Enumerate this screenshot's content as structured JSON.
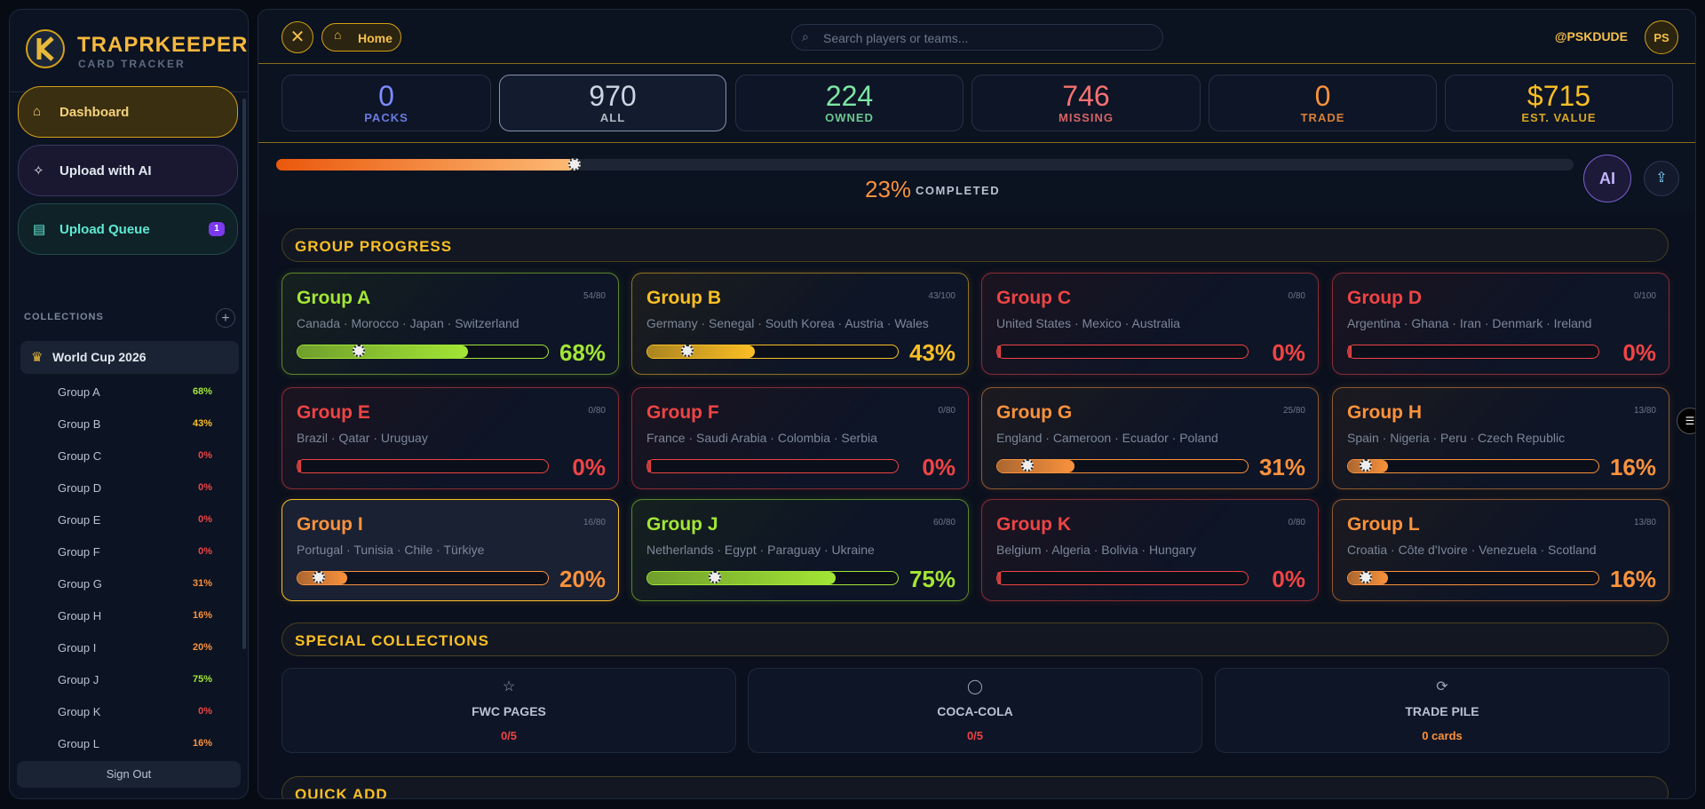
{
  "sidebar": {
    "brand": "TRAPRKEEPER",
    "tagline": "CARD TRACKER",
    "nav": [
      {
        "label": "Dashboard"
      },
      {
        "label": "Upload with AI"
      },
      {
        "label": "Upload Queue",
        "badge": "1"
      }
    ],
    "collections_heading": "COLLECTIONS",
    "collection": "World Cup 2026",
    "sign_out": "Sign Out"
  },
  "header": {
    "home": "Home",
    "search_placeholder": "Search players or teams...",
    "user": "@PSKDUDE",
    "avatar": "PS"
  },
  "stats": [
    {
      "value": "0",
      "label": "PACKS"
    },
    {
      "value": "970",
      "label": "ALL"
    },
    {
      "value": "224",
      "label": "OWNED"
    },
    {
      "value": "746",
      "label": "MISSING"
    },
    {
      "value": "0",
      "label": "TRADE"
    },
    {
      "value": "$715",
      "label": "EST. VALUE"
    }
  ],
  "progress": {
    "percent": "23%",
    "label": "COMPLETED",
    "ai": "AI"
  },
  "sections": {
    "groups": "GROUP PROGRESS",
    "special": "SPECIAL COLLECTIONS",
    "quick": "QUICK ADD"
  },
  "groups": [
    {
      "name": "Group A",
      "count": "54/80",
      "teams": "Canada · Morocco · Japan · Switzerland",
      "pct": "68%"
    },
    {
      "name": "Group B",
      "count": "43/100",
      "teams": "Germany · Senegal · South Korea · Austria · Wales",
      "pct": "43%"
    },
    {
      "name": "Group C",
      "count": "0/80",
      "teams": "United States · Mexico · Australia",
      "pct": "0%"
    },
    {
      "name": "Group D",
      "count": "0/100",
      "teams": "Argentina · Ghana · Iran · Denmark · Ireland",
      "pct": "0%"
    },
    {
      "name": "Group E",
      "count": "0/80",
      "teams": "Brazil · Qatar · Uruguay",
      "pct": "0%"
    },
    {
      "name": "Group F",
      "count": "0/80",
      "teams": "France · Saudi Arabia · Colombia · Serbia",
      "pct": "0%"
    },
    {
      "name": "Group G",
      "count": "25/80",
      "teams": "England · Cameroon · Ecuador · Poland",
      "pct": "31%"
    },
    {
      "name": "Group H",
      "count": "13/80",
      "teams": "Spain · Nigeria · Peru · Czech Republic",
      "pct": "16%"
    },
    {
      "name": "Group I",
      "count": "16/80",
      "teams": "Portugal · Tunisia · Chile · Türkiye",
      "pct": "20%"
    },
    {
      "name": "Group J",
      "count": "60/80",
      "teams": "Netherlands · Egypt · Paraguay · Ukraine",
      "pct": "75%"
    },
    {
      "name": "Group K",
      "count": "0/80",
      "teams": "Belgium · Algeria · Bolivia · Hungary",
      "pct": "0%"
    },
    {
      "name": "Group L",
      "count": "13/80",
      "teams": "Croatia · Côte d'Ivoire · Venezuela · Scotland",
      "pct": "16%"
    }
  ],
  "special": [
    {
      "title": "FWC PAGES",
      "value": "0/5"
    },
    {
      "title": "COCA-COLA",
      "value": "0/5"
    },
    {
      "title": "TRADE PILE",
      "value": "0 cards"
    }
  ]
}
